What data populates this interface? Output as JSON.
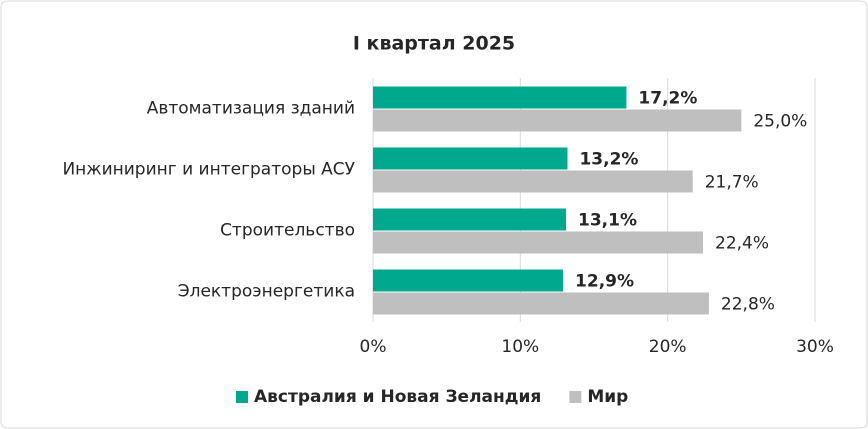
{
  "chart_data": {
    "type": "bar",
    "orientation": "horizontal",
    "title": "I квартал 2025",
    "categories": [
      "Автоматизация зданий",
      "Инжиниринг и интеграторы АСУ",
      "Строительство",
      "Электроэнергетика"
    ],
    "series": [
      {
        "name": "Австралия и Новая Зеландия",
        "color": "#00a88e",
        "values": [
          17.2,
          13.2,
          13.1,
          12.9
        ],
        "value_labels": [
          "17,2%",
          "13,2%",
          "13,1%",
          "12,9%"
        ]
      },
      {
        "name": "Мир",
        "color": "#bfbfbf",
        "values": [
          25.0,
          21.7,
          22.4,
          22.8
        ],
        "value_labels": [
          "25,0%",
          "21,7%",
          "22,4%",
          "22,8%"
        ]
      }
    ],
    "xlim": [
      0,
      30
    ],
    "xticks": [
      {
        "value": 0,
        "label": "0%"
      },
      {
        "value": 10,
        "label": "10%"
      },
      {
        "value": 20,
        "label": "20%"
      },
      {
        "value": 30,
        "label": "30%"
      }
    ],
    "grid": true,
    "legend": "bottom"
  }
}
